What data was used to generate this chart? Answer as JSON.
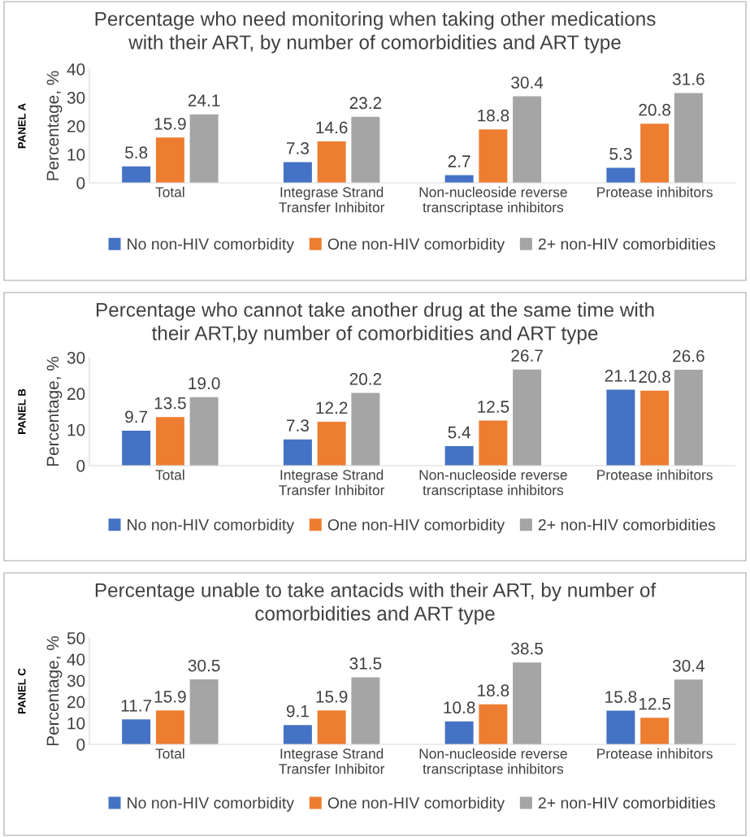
{
  "chart_data": [
    {
      "type": "bar",
      "title": "Percentage who need monitoring when taking other medications\nwith their ART, by number of comorbidities and ART type",
      "ylabel": "Percentage, %",
      "annotations": [
        "PANEL A"
      ],
      "categories": [
        "Total",
        "Integrase Strand\nTransfer Inhibitor",
        "Non-nucleoside reverse\ntranscriptase inhibitors",
        "Protease inhibitors"
      ],
      "series": [
        {
          "name": "No non-HIV comorbidity",
          "color": "#4472c4",
          "values": [
            5.8,
            7.3,
            2.7,
            5.3
          ]
        },
        {
          "name": "One non-HIV comorbidity",
          "color": "#ed7d31",
          "values": [
            15.9,
            14.6,
            18.8,
            20.8
          ]
        },
        {
          "name": "2+ non-HIV comorbidities",
          "color": "#a5a5a5",
          "values": [
            24.1,
            23.2,
            30.4,
            31.6
          ]
        }
      ],
      "ylim": [
        0,
        40
      ],
      "yticks": [
        0,
        10,
        20,
        30,
        40
      ],
      "data_labels": true,
      "grid": false,
      "legend": "bottom"
    },
    {
      "type": "bar",
      "title": "Percentage who cannot take another drug at the same time with\ntheir ART,by number of comorbidities and ART type",
      "ylabel": "Percentage, %",
      "annotations": [
        "PANEL B"
      ],
      "categories": [
        "Total",
        "Integrase Strand\nTransfer Inhibitor",
        "Non-nucleoside reverse\ntranscriptase inhibitors",
        "Protease inhibitors"
      ],
      "series": [
        {
          "name": "No non-HIV comorbidity",
          "color": "#4472c4",
          "values": [
            9.7,
            7.3,
            5.4,
            21.1
          ]
        },
        {
          "name": "One non-HIV comorbidity",
          "color": "#ed7d31",
          "values": [
            13.5,
            12.2,
            12.5,
            20.8
          ]
        },
        {
          "name": "2+ non-HIV comorbidities",
          "color": "#a5a5a5",
          "values": [
            19.0,
            20.2,
            26.7,
            26.6
          ]
        }
      ],
      "value_labels": [
        [
          "9.7",
          "7.3",
          "5.4",
          "21.1"
        ],
        [
          "13.5",
          "12.2",
          "12.5",
          "20.8"
        ],
        [
          "19.0",
          "20.2",
          "26.7",
          "26.6"
        ]
      ],
      "ylim": [
        0,
        30
      ],
      "yticks": [
        0,
        10,
        20,
        30
      ],
      "grid": false,
      "legend": "bottom"
    },
    {
      "type": "bar",
      "title": "Percentage unable to take antacids with their ART, by number of\ncomorbidities and ART type",
      "ylabel": "Percentage, %",
      "annotations": [
        "PANEL C"
      ],
      "categories": [
        "Total",
        "Integrase Strand\nTransfer Inhibitor",
        "Non-nucleoside reverse\ntranscriptase inhibitors",
        "Protease inhibitors"
      ],
      "series": [
        {
          "name": "No non-HIV comorbidity",
          "color": "#4472c4",
          "values": [
            11.7,
            9.1,
            10.8,
            15.8
          ]
        },
        {
          "name": "One non-HIV comorbidity",
          "color": "#ed7d31",
          "values": [
            15.9,
            15.9,
            18.8,
            12.5
          ]
        },
        {
          "name": "2+ non-HIV comorbidities",
          "color": "#a5a5a5",
          "values": [
            30.5,
            31.5,
            38.5,
            30.4
          ]
        }
      ],
      "ylim": [
        0,
        50
      ],
      "yticks": [
        0,
        10,
        20,
        30,
        40,
        50
      ],
      "data_labels": true,
      "grid": false,
      "legend": "bottom"
    }
  ]
}
